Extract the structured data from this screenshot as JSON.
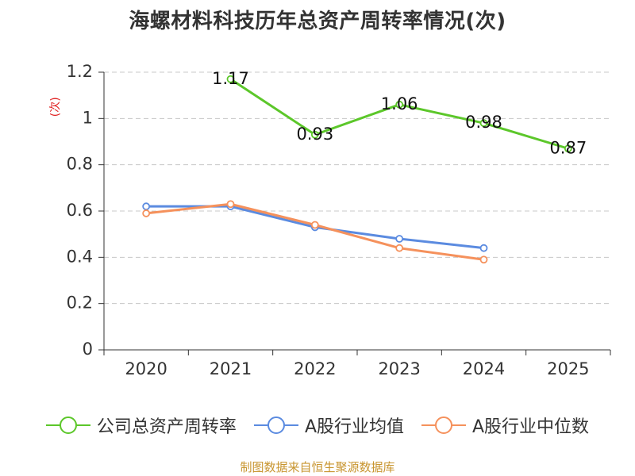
{
  "chart_data": {
    "type": "line",
    "title": "海螺材料科技历年总资产周转率情况(次)",
    "ylabel": "(次)",
    "xlabel": "",
    "categories": [
      "2020",
      "2021",
      "2022",
      "2023",
      "2024",
      "2025"
    ],
    "ylim": [
      0,
      1.2
    ],
    "yticks": [
      0,
      0.2,
      0.4,
      0.6,
      0.8,
      1,
      1.2
    ],
    "ytick_labels": [
      "0",
      "0.2",
      "0.4",
      "0.6",
      "0.8",
      "1",
      "1.2"
    ],
    "grid": true,
    "legend_position": "bottom",
    "series": [
      {
        "name": "公司总资产周转率",
        "color": "#5cc72a",
        "values": [
          null,
          1.17,
          0.93,
          1.06,
          0.98,
          0.87
        ],
        "labels": [
          null,
          "1.17",
          "0.93",
          "1.06",
          "0.98",
          "0.87"
        ]
      },
      {
        "name": "A股行业均值",
        "color": "#5b8be0",
        "values": [
          0.62,
          0.62,
          0.53,
          0.48,
          0.44,
          null
        ],
        "labels": null
      },
      {
        "name": "A股行业中位数",
        "color": "#f5915c",
        "values": [
          0.59,
          0.63,
          0.54,
          0.44,
          0.39,
          null
        ],
        "labels": null
      }
    ]
  },
  "source": "制图数据来自恒生聚源数据库"
}
